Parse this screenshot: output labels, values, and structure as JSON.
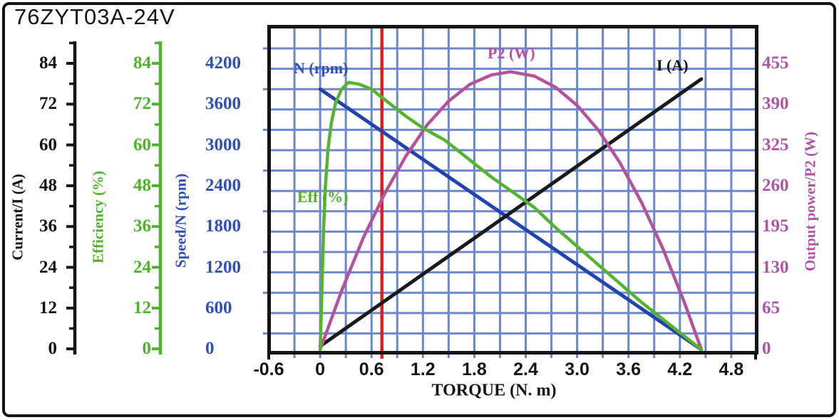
{
  "title": "76ZYT03A-24V",
  "colors": {
    "current": "#141414",
    "efficiency": "#4fb32a",
    "speed": "#2f51b5",
    "power": "#b055a5",
    "grid": "#6d87cd",
    "red_line": "#e51a1a",
    "frame": "#141414"
  },
  "axes": {
    "current": {
      "label": "Current/I (A)",
      "ticks": [
        "84",
        "72",
        "60",
        "48",
        "36",
        "24",
        "12",
        "0"
      ]
    },
    "efficiency": {
      "label": "Efficiency (%)",
      "ticks": [
        "84",
        "72",
        "60",
        "48",
        "36",
        "24",
        "12",
        "0"
      ]
    },
    "speed": {
      "label": "Speed/N (rpm)",
      "ticks": [
        "4200",
        "3600",
        "3000",
        "2400",
        "1800",
        "1200",
        "600",
        "0"
      ]
    },
    "power": {
      "label": "Output power/P2 (W)",
      "ticks": [
        "455",
        "390",
        "325",
        "260",
        "195",
        "130",
        "65",
        "0"
      ]
    }
  },
  "x_axis": {
    "label": "TORQUE (N. m)",
    "ticks": [
      "-0.6",
      "0",
      "0.6",
      "1.2",
      "1.8",
      "2.4",
      "3.0",
      "3.6",
      "4.2",
      "4.8"
    ]
  },
  "curve_labels": {
    "speed": "N (rpm)",
    "efficiency": "Eff (%)",
    "power": "P2 (W)",
    "current": "I (A)"
  },
  "chart_data": {
    "type": "line",
    "title": "76ZYT03A-24V",
    "xlabel": "TORQUE (N. m)",
    "x_range": [
      -0.6,
      4.8
    ],
    "grid": true,
    "legend_position": "inline-labels",
    "red_marker_torque": 0.72,
    "stall_torque": 4.45,
    "scales": {
      "current": {
        "min": 0,
        "max": 84,
        "unit": "A"
      },
      "efficiency": {
        "min": 0,
        "max": 84,
        "unit": "%"
      },
      "speed": {
        "min": 0,
        "max": 4200,
        "unit": "rpm"
      },
      "power": {
        "min": 0,
        "max": 455,
        "unit": "W"
      }
    },
    "series": [
      {
        "name": "N (rpm)",
        "scale": "speed",
        "color": "#2344ab",
        "stroke": 5,
        "points": [
          [
            0,
            3850
          ],
          [
            4.45,
            0
          ]
        ]
      },
      {
        "name": "I (A)",
        "scale": "current",
        "color": "#1a1a1a",
        "stroke": 5,
        "points": [
          [
            0,
            1
          ],
          [
            4.45,
            80
          ]
        ]
      },
      {
        "name": "P2 (W)",
        "scale": "power",
        "color": "#b3539f",
        "stroke": 4.5,
        "points": [
          [
            0,
            0
          ],
          [
            0.25,
            94
          ],
          [
            0.5,
            178
          ],
          [
            0.75,
            249
          ],
          [
            1.0,
            310
          ],
          [
            1.25,
            360
          ],
          [
            1.5,
            398
          ],
          [
            1.75,
            425
          ],
          [
            2.0,
            440
          ],
          [
            2.225,
            445
          ],
          [
            2.5,
            438
          ],
          [
            2.75,
            420
          ],
          [
            3.0,
            391
          ],
          [
            3.25,
            351
          ],
          [
            3.5,
            299
          ],
          [
            3.75,
            236
          ],
          [
            4.0,
            162
          ],
          [
            4.25,
            76
          ],
          [
            4.45,
            0
          ]
        ]
      },
      {
        "name": "Eff (%)",
        "scale": "efficiency",
        "color": "#55b42e",
        "stroke": 4.5,
        "points": [
          [
            0,
            0
          ],
          [
            0.02,
            18
          ],
          [
            0.04,
            36
          ],
          [
            0.06,
            48
          ],
          [
            0.09,
            59
          ],
          [
            0.13,
            67
          ],
          [
            0.18,
            73
          ],
          [
            0.25,
            77
          ],
          [
            0.33,
            79
          ],
          [
            0.45,
            78.5
          ],
          [
            0.6,
            77
          ],
          [
            0.8,
            73
          ],
          [
            1.0,
            69
          ],
          [
            1.2,
            65.5
          ],
          [
            1.45,
            62
          ],
          [
            1.7,
            57
          ],
          [
            2.0,
            51
          ],
          [
            2.25,
            46.5
          ],
          [
            2.5,
            42
          ],
          [
            2.75,
            36
          ],
          [
            3.0,
            30.5
          ],
          [
            3.25,
            25
          ],
          [
            3.5,
            19.5
          ],
          [
            3.75,
            14
          ],
          [
            4.0,
            9
          ],
          [
            4.2,
            5
          ],
          [
            4.45,
            0
          ]
        ]
      }
    ]
  }
}
